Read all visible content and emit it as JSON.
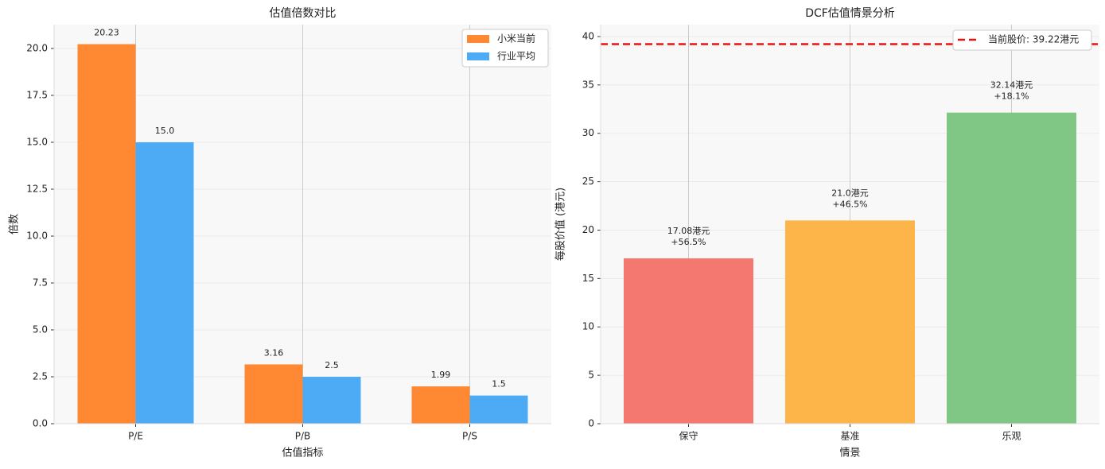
{
  "chart_data": [
    {
      "type": "grouped-bar",
      "title": "估值倍数对比",
      "xlabel": "估值指标",
      "ylabel": "倍数",
      "categories": [
        "P/E",
        "P/B",
        "P/S"
      ],
      "series": [
        {
          "name": "小米当前",
          "color": "#ff8833",
          "values": [
            20.23,
            3.16,
            1.99
          ]
        },
        {
          "name": "行业平均",
          "color": "#4dabf5",
          "values": [
            15.0,
            2.5,
            1.5
          ],
          "value_labels": [
            "15.0",
            "2.5",
            "1.5"
          ]
        }
      ],
      "ylim": [
        0,
        21.27
      ],
      "yticks": [
        {
          "value": 0,
          "label": "0.0"
        },
        2.5,
        {
          "value": 5,
          "label": "5.0"
        },
        7.5,
        {
          "value": 10,
          "label": "10.0"
        },
        12.5,
        {
          "value": 15,
          "label": "15.0"
        },
        17.5,
        {
          "value": 20,
          "label": "20.0"
        }
      ],
      "grid": true,
      "legend": "upper-right"
    },
    {
      "type": "bar",
      "title": "DCF估值情景分析",
      "xlabel": "情景",
      "ylabel": "每股价值 (港元)",
      "categories": [
        "保守",
        "基准",
        "乐观"
      ],
      "values": [
        17.08,
        21.0,
        32.14
      ],
      "value_labels": [
        "17.08港元",
        "21.0港元",
        "32.14港元"
      ],
      "change_labels": [
        "+56.5%",
        "+46.5%",
        "+18.1%"
      ],
      "colors": [
        "#f47870",
        "#fdb54a",
        "#80c684"
      ],
      "ylim": [
        0,
        41.23
      ],
      "yticks": [
        0,
        5,
        10,
        15,
        20,
        25,
        30,
        35,
        40
      ],
      "reference_line": {
        "value": 39.22,
        "label": "当前股价: 39.22港元",
        "color": "#ee1111"
      },
      "grid": true,
      "legend": "upper-right"
    }
  ]
}
